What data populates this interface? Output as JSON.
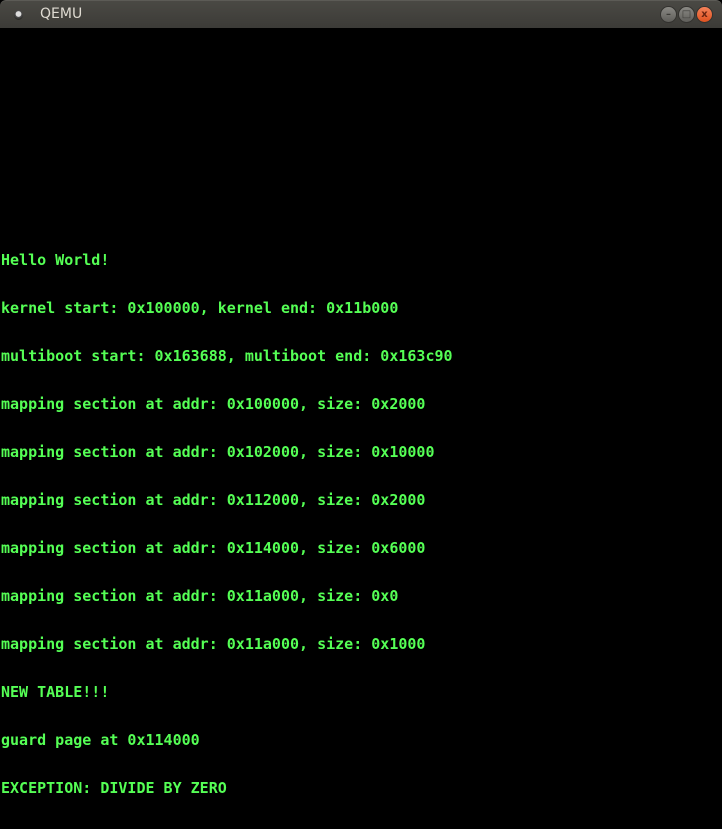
{
  "window": {
    "title": "QEMU",
    "icon": "qemu-app-icon",
    "controls": [
      {
        "name": "minimize",
        "glyph": "–"
      },
      {
        "name": "maximize",
        "glyph": "□"
      },
      {
        "name": "close",
        "glyph": "x"
      }
    ]
  },
  "console": {
    "text_color": "#55ff55",
    "background": "#000000",
    "lines": [
      "Hello World!",
      "kernel start: 0x100000, kernel end: 0x11b000",
      "multiboot start: 0x163688, multiboot end: 0x163c90",
      "mapping section at addr: 0x100000, size: 0x2000",
      "mapping section at addr: 0x102000, size: 0x10000",
      "mapping section at addr: 0x112000, size: 0x2000",
      "mapping section at addr: 0x114000, size: 0x6000",
      "mapping section at addr: 0x11a000, size: 0x0",
      "mapping section at addr: 0x11a000, size: 0x1000",
      "NEW TABLE!!!",
      "guard page at 0x114000",
      "EXCEPTION: DIVIDE BY ZERO"
    ]
  }
}
